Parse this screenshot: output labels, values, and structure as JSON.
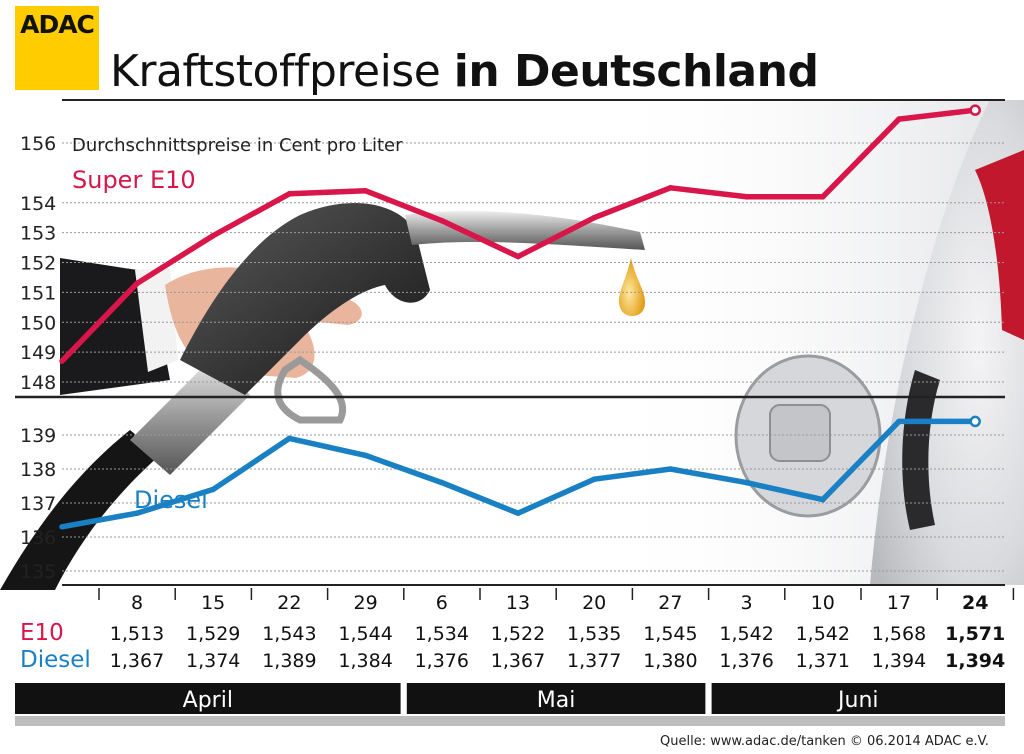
{
  "logo": {
    "text": "ADAC"
  },
  "title": {
    "light": "Kraftstoffpreise",
    "bold": "in Deutschland"
  },
  "source": "Quelle: www.adac.de/tanken  © 06.2014  ADAC e.V.",
  "colors": {
    "e10": "#d8164a",
    "diesel": "#1a80c4",
    "logo": "#ffcc00",
    "monthbar": "#111111"
  },
  "chart_data": {
    "type": "line",
    "subtitle": "Durchschnittspreise in Cent pro Liter",
    "x": [
      "8",
      "15",
      "22",
      "29",
      "6",
      "13",
      "20",
      "27",
      "3",
      "10",
      "17",
      "24"
    ],
    "months": [
      {
        "label": "April",
        "span": 4
      },
      {
        "label": "Mai",
        "span": 4
      },
      {
        "label": "Juni",
        "span": 4
      }
    ],
    "panels": [
      {
        "series_name": "Super E10",
        "row_label": "E10",
        "yticks": [
          148,
          149,
          150,
          151,
          152,
          153,
          154,
          156
        ],
        "values": [
          151.3,
          152.9,
          154.3,
          154.4,
          153.4,
          152.2,
          153.5,
          154.5,
          154.2,
          154.2,
          156.8,
          157.1
        ],
        "table": [
          "1,513",
          "1,529",
          "1,543",
          "1,544",
          "1,534",
          "1,522",
          "1,535",
          "1,545",
          "1,542",
          "1,542",
          "1,568",
          "1,571"
        ],
        "line_start": 148.7
      },
      {
        "series_name": "Diesel",
        "row_label": "Diesel",
        "yticks": [
          135,
          136,
          137,
          138,
          139
        ],
        "values": [
          136.7,
          137.4,
          138.9,
          138.4,
          137.6,
          136.7,
          137.7,
          138.0,
          137.6,
          137.1,
          139.4,
          139.4
        ],
        "table": [
          "1,367",
          "1,374",
          "1,389",
          "1,384",
          "1,376",
          "1,367",
          "1,377",
          "1,380",
          "1,376",
          "1,371",
          "1,394",
          "1,394"
        ],
        "line_start": 136.3
      }
    ]
  }
}
